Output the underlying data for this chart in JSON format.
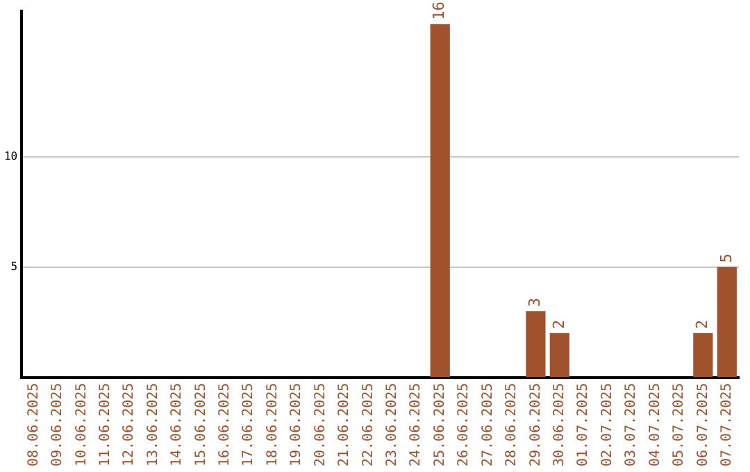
{
  "chart_data": {
    "type": "bar",
    "categories": [
      "08.06.2025",
      "09.06.2025",
      "10.06.2025",
      "11.06.2025",
      "12.06.2025",
      "13.06.2025",
      "14.06.2025",
      "15.06.2025",
      "16.06.2025",
      "17.06.2025",
      "18.06.2025",
      "19.06.2025",
      "20.06.2025",
      "21.06.2025",
      "22.06.2025",
      "23.06.2025",
      "24.06.2025",
      "25.06.2025",
      "26.06.2025",
      "27.06.2025",
      "28.06.2025",
      "29.06.2025",
      "30.06.2025",
      "01.07.2025",
      "02.07.2025",
      "03.07.2025",
      "04.07.2025",
      "05.07.2025",
      "06.07.2025",
      "07.07.2025"
    ],
    "values": [
      0,
      0,
      0,
      0,
      0,
      0,
      0,
      0,
      0,
      0,
      0,
      0,
      0,
      0,
      0,
      0,
      0,
      16,
      0,
      0,
      0,
      3,
      2,
      0,
      0,
      0,
      0,
      0,
      2,
      5
    ],
    "value_labels": [
      null,
      null,
      null,
      null,
      null,
      null,
      null,
      null,
      null,
      null,
      null,
      null,
      null,
      null,
      null,
      null,
      null,
      "16",
      null,
      null,
      null,
      "3",
      "2",
      null,
      null,
      null,
      null,
      null,
      "2",
      "5"
    ],
    "color": "#a0522d",
    "ylim": [
      0,
      16.6
    ],
    "yticks": [
      5,
      10
    ],
    "grid": "y",
    "legend": false
  }
}
